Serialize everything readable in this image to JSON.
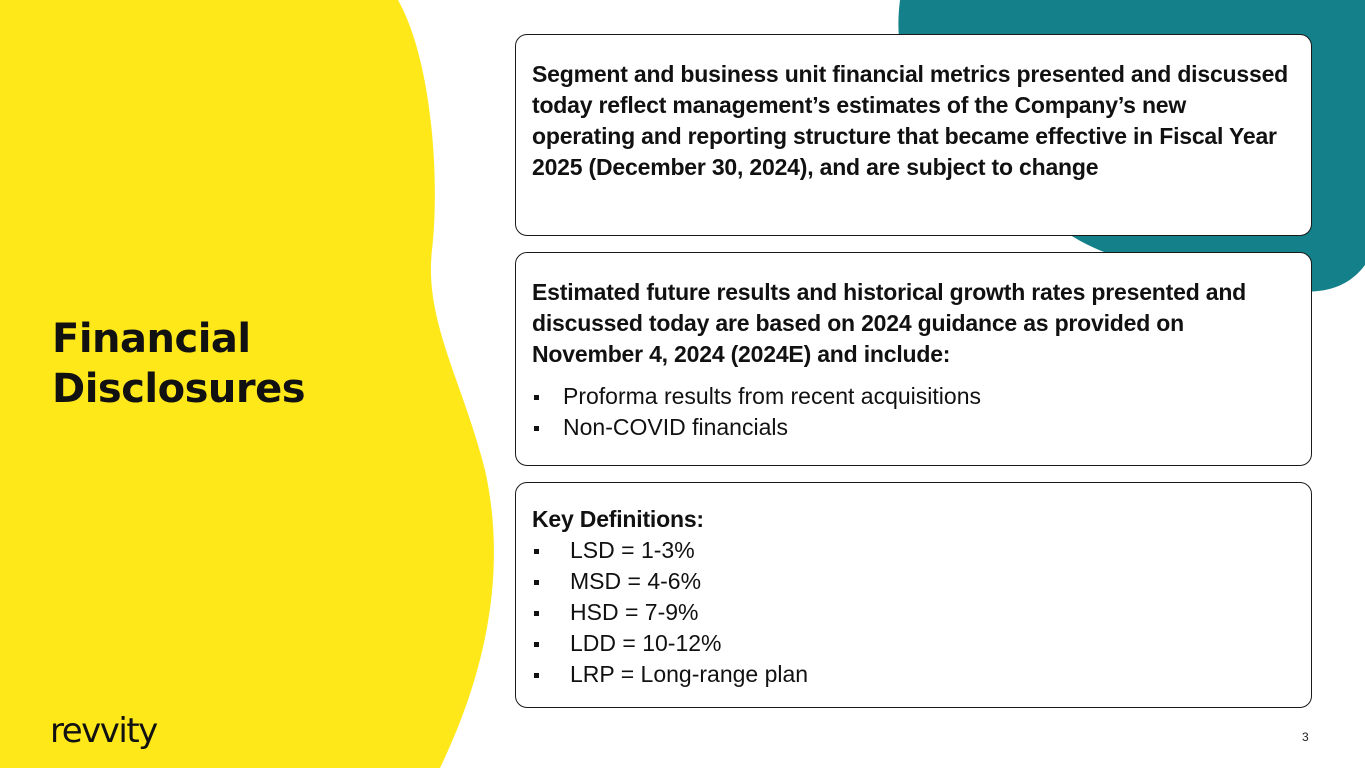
{
  "page": {
    "title_lines": [
      "Financial",
      "Disclosures"
    ],
    "page_number": "3"
  },
  "brand": {
    "logo_text": "revvity",
    "colors": {
      "yellow": "#FFE81A",
      "teal": "#14808A",
      "text": "#111111"
    }
  },
  "cards": [
    {
      "text": "Segment and business unit financial metrics presented and discussed today reflect management’s estimates of the Company’s new operating and reporting structure that became effective in Fiscal Year 2025 (December 30, 2024), and are subject to change"
    },
    {
      "text": "Estimated future results and historical growth rates presented and discussed today are based on 2024 guidance as provided on November 4, 2024 (2024E) and include:",
      "bullets": [
        "Proforma results from recent acquisitions",
        "Non-COVID financials"
      ]
    },
    {
      "heading": "Key Definitions:",
      "bullets": [
        "LSD = 1-3%",
        "MSD = 4-6%",
        "HSD = 7-9%",
        "LDD = 10-12%",
        "LRP = Long-range plan"
      ]
    }
  ]
}
